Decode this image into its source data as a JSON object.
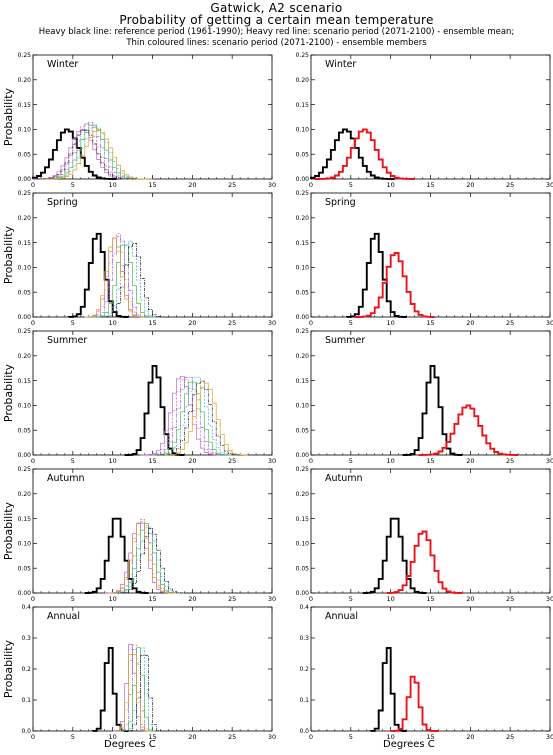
{
  "header": {
    "line1": "Gatwick, A2 scenario",
    "line2": "Probability of getting a certain mean temperature",
    "line3": "Heavy black line: reference period (1961-1990); Heavy red line: scenario period (2071-2100) - ensemble mean;",
    "line4": "Thin coloured lines: scenario period (2071-2100) - ensemble members"
  },
  "axes": {
    "ylabel": "Probability",
    "xlabel": "Degrees C",
    "xticks": [
      "0",
      "5",
      "10",
      "15",
      "20",
      "25",
      "30"
    ],
    "xlim": [
      0,
      30
    ],
    "yticks_standard": [
      "0.00",
      "0.05",
      "0.10",
      "0.15",
      "0.20",
      "0.25"
    ],
    "yticks_annual": [
      "0.0",
      "0.1",
      "0.2",
      "0.3",
      "0.4"
    ]
  },
  "colors": {
    "reference": "#000000",
    "scenario_mean": "#e8141c",
    "members": [
      "#c060e0",
      "#e060a0",
      "#9060e0",
      "#40c040",
      "#40a0e0",
      "#202020",
      "#e0a020"
    ]
  },
  "chart_data": [
    {
      "type": "line",
      "panel": "left",
      "season": "Winter",
      "ylim": [
        0,
        0.25
      ],
      "series": [
        {
          "role": "reference",
          "peak_x": 4.3,
          "sd": 1.5,
          "peak": 0.1
        },
        {
          "role": "member",
          "peak_x": 6.2,
          "sd": 1.5,
          "peak": 0.1
        },
        {
          "role": "member",
          "peak_x": 6.7,
          "sd": 1.5,
          "peak": 0.11
        },
        {
          "role": "member",
          "peak_x": 7.1,
          "sd": 1.5,
          "peak": 0.115
        },
        {
          "role": "member",
          "peak_x": 7.5,
          "sd": 1.55,
          "peak": 0.11
        },
        {
          "role": "member",
          "peak_x": 7.9,
          "sd": 1.6,
          "peak": 0.105
        },
        {
          "role": "member",
          "peak_x": 6.5,
          "sd": 1.5,
          "peak": 0.1
        },
        {
          "role": "member",
          "peak_x": 8.2,
          "sd": 1.6,
          "peak": 0.1
        }
      ]
    },
    {
      "type": "line",
      "panel": "right",
      "season": "Winter",
      "ylim": [
        0,
        0.25
      ],
      "series": [
        {
          "role": "reference",
          "peak_x": 4.3,
          "sd": 1.5,
          "peak": 0.1
        },
        {
          "role": "scenario_mean",
          "peak_x": 6.7,
          "sd": 1.5,
          "peak": 0.1
        }
      ]
    },
    {
      "type": "line",
      "panel": "left",
      "season": "Spring",
      "ylim": [
        0,
        0.25
      ],
      "series": [
        {
          "role": "reference",
          "peak_x": 8.1,
          "sd": 0.9,
          "peak": 0.17
        },
        {
          "role": "member",
          "peak_x": 10.3,
          "sd": 0.9,
          "peak": 0.16
        },
        {
          "role": "member",
          "peak_x": 10.6,
          "sd": 0.9,
          "peak": 0.17
        },
        {
          "role": "member",
          "peak_x": 10.9,
          "sd": 0.9,
          "peak": 0.165
        },
        {
          "role": "member",
          "peak_x": 11.5,
          "sd": 0.95,
          "peak": 0.15
        },
        {
          "role": "member",
          "peak_x": 12.1,
          "sd": 0.95,
          "peak": 0.155
        },
        {
          "role": "member",
          "peak_x": 12.6,
          "sd": 1.0,
          "peak": 0.15
        },
        {
          "role": "member",
          "peak_x": 10.2,
          "sd": 0.9,
          "peak": 0.16
        }
      ]
    },
    {
      "type": "line",
      "panel": "right",
      "season": "Spring",
      "ylim": [
        0,
        0.25
      ],
      "series": [
        {
          "role": "reference",
          "peak_x": 8.1,
          "sd": 0.9,
          "peak": 0.17
        },
        {
          "role": "scenario_mean",
          "peak_x": 10.6,
          "sd": 1.2,
          "peak": 0.13
        }
      ]
    },
    {
      "type": "line",
      "panel": "left",
      "season": "Summer",
      "ylim": [
        0,
        0.25
      ],
      "series": [
        {
          "role": "reference",
          "peak_x": 15.3,
          "sd": 0.85,
          "peak": 0.18
        },
        {
          "role": "member",
          "peak_x": 18.6,
          "sd": 1.2,
          "peak": 0.16
        },
        {
          "role": "member",
          "peak_x": 19.0,
          "sd": 1.2,
          "peak": 0.155
        },
        {
          "role": "member",
          "peak_x": 19.5,
          "sd": 1.2,
          "peak": 0.16
        },
        {
          "role": "member",
          "peak_x": 20.0,
          "sd": 1.2,
          "peak": 0.15
        },
        {
          "role": "member",
          "peak_x": 20.5,
          "sd": 1.25,
          "peak": 0.16
        },
        {
          "role": "member",
          "peak_x": 21.1,
          "sd": 1.3,
          "peak": 0.15
        },
        {
          "role": "member",
          "peak_x": 21.7,
          "sd": 1.3,
          "peak": 0.145
        }
      ]
    },
    {
      "type": "line",
      "panel": "right",
      "season": "Summer",
      "ylim": [
        0,
        0.25
      ],
      "series": [
        {
          "role": "reference",
          "peak_x": 15.3,
          "sd": 0.85,
          "peak": 0.18
        },
        {
          "role": "scenario_mean",
          "peak_x": 19.7,
          "sd": 1.5,
          "peak": 0.1
        }
      ]
    },
    {
      "type": "line",
      "panel": "left",
      "season": "Autumn",
      "ylim": [
        0,
        0.25
      ],
      "series": [
        {
          "role": "reference",
          "peak_x": 10.5,
          "sd": 0.95,
          "peak": 0.155
        },
        {
          "role": "member",
          "peak_x": 13.3,
          "sd": 1.0,
          "peak": 0.14
        },
        {
          "role": "member",
          "peak_x": 13.6,
          "sd": 1.0,
          "peak": 0.15
        },
        {
          "role": "member",
          "peak_x": 13.9,
          "sd": 1.0,
          "peak": 0.145
        },
        {
          "role": "member",
          "peak_x": 14.2,
          "sd": 1.0,
          "peak": 0.14
        },
        {
          "role": "member",
          "peak_x": 14.5,
          "sd": 1.05,
          "peak": 0.135
        },
        {
          "role": "member",
          "peak_x": 14.8,
          "sd": 1.05,
          "peak": 0.13
        },
        {
          "role": "member",
          "peak_x": 13.5,
          "sd": 1.0,
          "peak": 0.145
        }
      ]
    },
    {
      "type": "line",
      "panel": "right",
      "season": "Autumn",
      "ylim": [
        0,
        0.25
      ],
      "series": [
        {
          "role": "reference",
          "peak_x": 10.5,
          "sd": 0.95,
          "peak": 0.155
        },
        {
          "role": "scenario_mean",
          "peak_x": 14.1,
          "sd": 1.15,
          "peak": 0.125
        }
      ]
    },
    {
      "type": "line",
      "panel": "left",
      "season": "Annual",
      "ylim": [
        0,
        0.4
      ],
      "series": [
        {
          "role": "reference",
          "peak_x": 9.6,
          "sd": 0.5,
          "peak": 0.28
        },
        {
          "role": "member",
          "peak_x": 12.3,
          "sd": 0.5,
          "peak": 0.28
        },
        {
          "role": "member",
          "peak_x": 12.6,
          "sd": 0.5,
          "peak": 0.29
        },
        {
          "role": "member",
          "peak_x": 12.9,
          "sd": 0.5,
          "peak": 0.275
        },
        {
          "role": "member",
          "peak_x": 13.3,
          "sd": 0.5,
          "peak": 0.27
        },
        {
          "role": "member",
          "peak_x": 13.6,
          "sd": 0.5,
          "peak": 0.28
        },
        {
          "role": "member",
          "peak_x": 14.0,
          "sd": 0.55,
          "peak": 0.27
        },
        {
          "role": "member",
          "peak_x": 12.5,
          "sd": 0.5,
          "peak": 0.28
        }
      ]
    },
    {
      "type": "line",
      "panel": "right",
      "season": "Annual",
      "ylim": [
        0,
        0.4
      ],
      "series": [
        {
          "role": "reference",
          "peak_x": 9.6,
          "sd": 0.5,
          "peak": 0.28
        },
        {
          "role": "scenario_mean",
          "peak_x": 12.9,
          "sd": 0.65,
          "peak": 0.18
        }
      ]
    }
  ]
}
